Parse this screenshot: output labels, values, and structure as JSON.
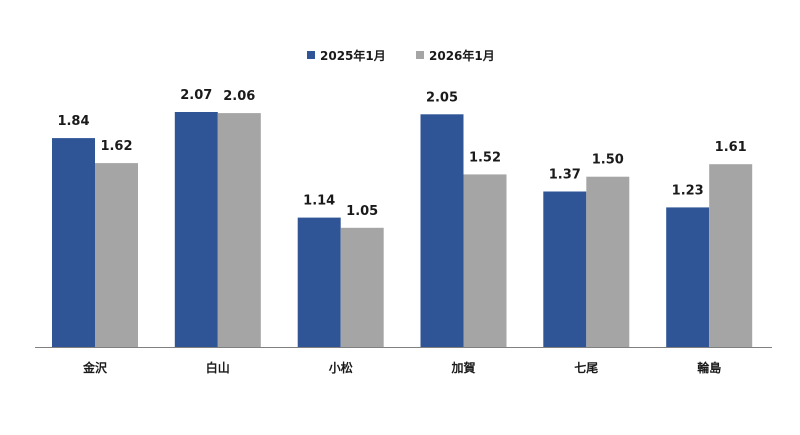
{
  "chart_data": {
    "type": "bar",
    "title": "",
    "xlabel": "",
    "ylabel": "",
    "categories": [
      "金沢",
      "白山",
      "小松",
      "加賀",
      "七尾",
      "輪島"
    ],
    "series": [
      {
        "name": "2025年1月",
        "color": "#2f5597",
        "values": [
          1.84,
          2.07,
          1.14,
          2.05,
          1.37,
          1.23
        ],
        "labels": [
          "1.84",
          "2.07",
          "1.14",
          "2.05",
          "1.37",
          "1.23"
        ]
      },
      {
        "name": "2026年1月",
        "color": "#a5a5a5",
        "values": [
          1.62,
          2.06,
          1.05,
          1.52,
          1.5,
          1.61
        ],
        "labels": [
          "1.62",
          "2.06",
          "1.05",
          "1.52",
          "1.50",
          "1.61"
        ]
      }
    ],
    "ylim": [
      0,
      2.07
    ],
    "grid": false,
    "legend_position": "top-center",
    "axis_color": "#808080"
  }
}
